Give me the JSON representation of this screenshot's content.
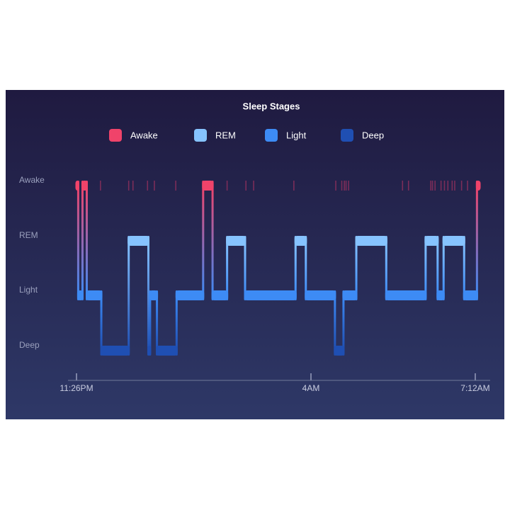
{
  "chart_data": {
    "type": "hypnogram",
    "title": "Sleep Stages",
    "stages": [
      "Awake",
      "REM",
      "Light",
      "Deep"
    ],
    "colors": [
      "#f0436a",
      "#86c3ff",
      "#3d8bf5",
      "#1f4fb3"
    ],
    "x": [
      0,
      2,
      7,
      12,
      29,
      61,
      84,
      86,
      94,
      117,
      148,
      159,
      176,
      197,
      256,
      268,
      302,
      312,
      327,
      362,
      408,
      422,
      429,
      453,
      468
    ],
    "stage": [
      "Awake",
      "Light",
      "Awake",
      "Light",
      "Deep",
      "REM",
      "Deep",
      "Light",
      "Deep",
      "Light",
      "Awake",
      "Light",
      "REM",
      "Light",
      "REM",
      "Light",
      "Deep",
      "Light",
      "REM",
      "Light",
      "REM",
      "Light",
      "REM",
      "Light",
      "Awake"
    ],
    "brief_awake": [
      28,
      61,
      66,
      83,
      91,
      116,
      176,
      198,
      207,
      254,
      303,
      310,
      313,
      315,
      318,
      381,
      388,
      414,
      416,
      419,
      426,
      430,
      434,
      439,
      442,
      450,
      457
    ],
    "xlim": [
      0,
      471
    ],
    "xticks": [
      {
        "value": 0,
        "label": "11:26PM"
      },
      {
        "value": 274,
        "label": "4AM"
      },
      {
        "value": 466,
        "label": "7:12AM"
      }
    ]
  }
}
